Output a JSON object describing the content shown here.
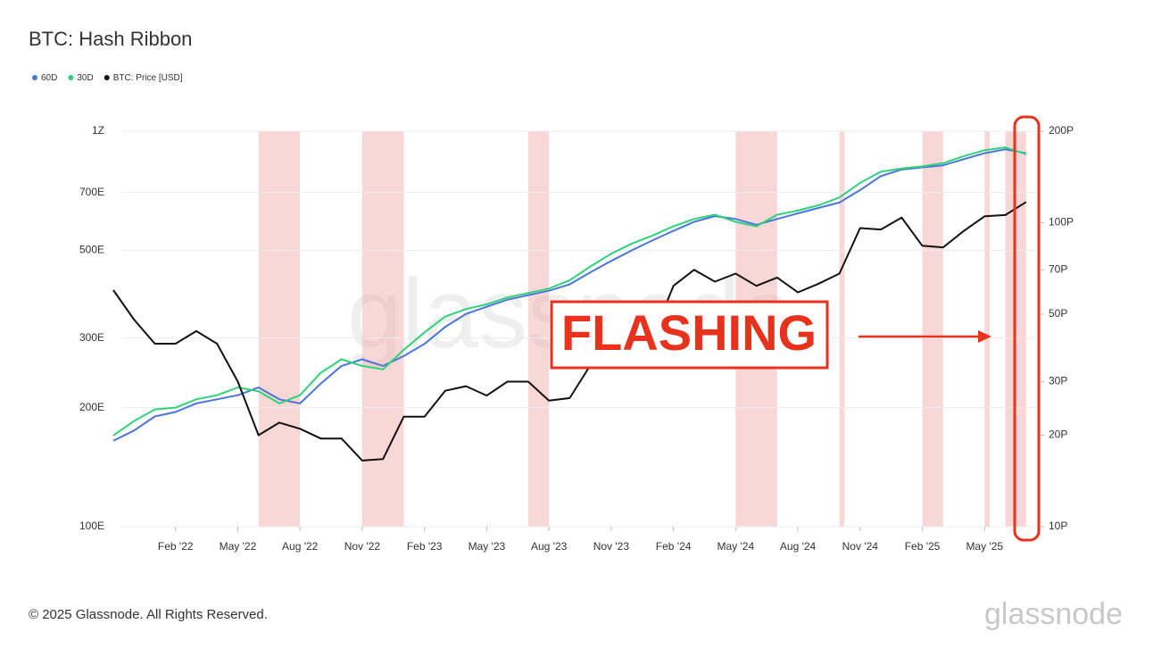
{
  "chart_data": {
    "type": "line",
    "title": "BTC: Hash Ribbon",
    "footer": "© 2025 Glassnode. All Rights Reserved.",
    "watermark": "glassnode",
    "annotation": "FLASHING",
    "annotation_color": "#e8321e",
    "band_color": "#f4a6a6",
    "x": [
      "2021-11",
      "2021-12",
      "2022-01",
      "2022-02",
      "2022-03",
      "2022-04",
      "2022-05",
      "2022-06",
      "2022-07",
      "2022-08",
      "2022-09",
      "2022-10",
      "2022-11",
      "2022-12",
      "2023-01",
      "2023-02",
      "2023-03",
      "2023-04",
      "2023-05",
      "2023-06",
      "2023-07",
      "2023-08",
      "2023-09",
      "2023-10",
      "2023-11",
      "2023-12",
      "2024-01",
      "2024-02",
      "2024-03",
      "2024-04",
      "2024-05",
      "2024-06",
      "2024-07",
      "2024-08",
      "2024-09",
      "2024-10",
      "2024-11",
      "2024-12",
      "2025-01",
      "2025-02",
      "2025-03",
      "2025-04",
      "2025-05",
      "2025-06",
      "2025-07"
    ],
    "xlim": [
      "2021-11",
      "2025-08"
    ],
    "xticks": [
      {
        "value": "2022-02",
        "label": "Feb '22"
      },
      {
        "value": "2022-05",
        "label": "May '22"
      },
      {
        "value": "2022-08",
        "label": "Aug '22"
      },
      {
        "value": "2022-11",
        "label": "Nov '22"
      },
      {
        "value": "2023-02",
        "label": "Feb '23"
      },
      {
        "value": "2023-05",
        "label": "May '23"
      },
      {
        "value": "2023-08",
        "label": "Aug '23"
      },
      {
        "value": "2023-11",
        "label": "Nov '23"
      },
      {
        "value": "2024-02",
        "label": "Feb '24"
      },
      {
        "value": "2024-05",
        "label": "May '24"
      },
      {
        "value": "2024-08",
        "label": "Aug '24"
      },
      {
        "value": "2024-11",
        "label": "Nov '24"
      },
      {
        "value": "2025-02",
        "label": "Feb '25"
      },
      {
        "value": "2025-05",
        "label": "May '25"
      }
    ],
    "ylim": [
      100,
      1000
    ],
    "yticks": [
      {
        "value": 100,
        "label": "100E"
      },
      {
        "value": 200,
        "label": "200E"
      },
      {
        "value": 300,
        "label": "300E"
      },
      {
        "value": 500,
        "label": "500E"
      },
      {
        "value": 700,
        "label": "700E"
      },
      {
        "value": 1000,
        "label": "1Z"
      }
    ],
    "y2lim": [
      10,
      200
    ],
    "y2ticks": [
      {
        "value": 10,
        "label": "10P"
      },
      {
        "value": 20,
        "label": "20P"
      },
      {
        "value": 30,
        "label": "30P"
      },
      {
        "value": 50,
        "label": "50P"
      },
      {
        "value": 70,
        "label": "70P"
      },
      {
        "value": 100,
        "label": "100P"
      },
      {
        "value": 200,
        "label": "200P"
      }
    ],
    "log_scale": true,
    "grid": true,
    "bands": [
      [
        "2022-06",
        "2022-08"
      ],
      [
        "2022-11",
        "2023-01"
      ],
      [
        "2023-07",
        "2023-08"
      ],
      [
        "2024-05",
        "2024-07"
      ],
      [
        "2024-10",
        "2024-10"
      ],
      [
        "2025-02",
        "2025-03"
      ],
      [
        "2025-05",
        "2025-05"
      ],
      [
        "2025-06",
        "2025-07"
      ]
    ],
    "series": [
      {
        "name": "60D",
        "color": "#4a76d8",
        "values": [
          165,
          175,
          190,
          195,
          205,
          210,
          215,
          225,
          210,
          205,
          230,
          255,
          265,
          255,
          270,
          290,
          320,
          345,
          360,
          375,
          385,
          395,
          410,
          440,
          470,
          500,
          530,
          560,
          590,
          610,
          600,
          580,
          600,
          620,
          640,
          660,
          710,
          770,
          800,
          810,
          820,
          850,
          880,
          900,
          880
        ]
      },
      {
        "name": "30D",
        "color": "#2fd27a",
        "values": [
          170,
          185,
          198,
          200,
          210,
          215,
          225,
          220,
          205,
          215,
          245,
          265,
          255,
          250,
          280,
          310,
          340,
          355,
          365,
          380,
          390,
          400,
          420,
          455,
          490,
          520,
          545,
          575,
          600,
          615,
          590,
          575,
          615,
          630,
          650,
          680,
          740,
          790,
          805,
          815,
          830,
          865,
          895,
          910,
          875
        ]
      },
      {
        "name": "BTC: Price [USD]",
        "color": "#111111",
        "axis": "y2",
        "values": [
          60,
          48,
          40,
          40,
          44,
          40,
          30,
          20,
          22,
          21,
          19.5,
          19.5,
          16.5,
          16.7,
          23,
          23,
          28,
          29,
          27,
          30,
          30,
          26,
          26.5,
          34,
          37,
          43,
          42,
          62,
          70,
          64,
          68,
          62,
          66,
          59,
          63,
          68,
          96,
          95,
          104,
          84,
          83,
          94,
          105,
          106,
          117
        ]
      }
    ]
  }
}
